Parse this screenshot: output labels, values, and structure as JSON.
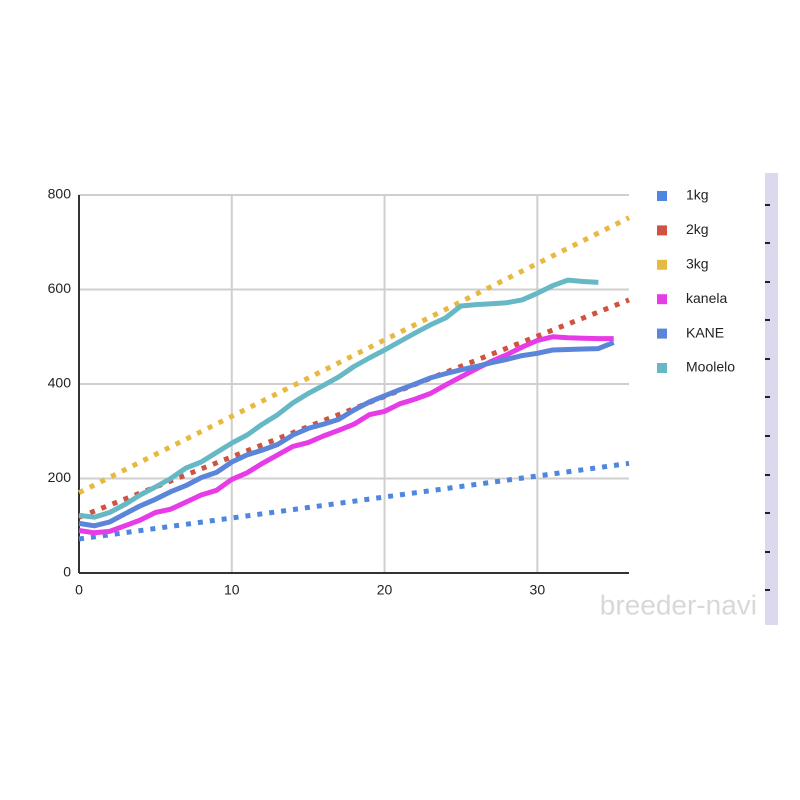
{
  "chart_data": {
    "type": "line",
    "xlim": [
      0,
      36
    ],
    "ylim": [
      0,
      800
    ],
    "xticks": [
      0,
      10,
      20,
      30
    ],
    "yticks": [
      0,
      200,
      400,
      600,
      800
    ],
    "grid": true,
    "legend": "right",
    "watermark": "breeder-navi",
    "series": [
      {
        "name": "1kg",
        "color": "#4f86e0",
        "dotted": true,
        "x": [
          0,
          36
        ],
        "values": [
          72,
          232
        ]
      },
      {
        "name": "2kg",
        "color": "#cf5340",
        "dotted": true,
        "x": [
          0,
          36
        ],
        "values": [
          118,
          578
        ]
      },
      {
        "name": "3kg",
        "color": "#e8b940",
        "dotted": true,
        "x": [
          0,
          36
        ],
        "values": [
          170,
          752
        ]
      },
      {
        "name": "kanela",
        "color": "#e83be8",
        "dotted": false,
        "x": [
          0,
          1,
          2,
          3,
          4,
          5,
          6,
          7,
          8,
          9,
          10,
          11,
          12,
          13,
          14,
          15,
          16,
          17,
          18,
          19,
          20,
          21,
          22,
          23,
          24,
          25,
          26,
          27,
          28,
          29,
          30,
          31,
          32,
          33,
          34,
          35
        ],
        "values": [
          90,
          85,
          88,
          100,
          112,
          128,
          135,
          150,
          165,
          175,
          198,
          212,
          232,
          250,
          268,
          276,
          290,
          302,
          315,
          335,
          342,
          358,
          368,
          380,
          398,
          415,
          432,
          448,
          462,
          478,
          492,
          500,
          498,
          497,
          496,
          496
        ]
      },
      {
        "name": "KANE",
        "color": "#5b85d8",
        "dotted": false,
        "x": [
          0,
          1,
          2,
          3,
          4,
          5,
          6,
          7,
          8,
          9,
          10,
          11,
          12,
          13,
          14,
          15,
          16,
          17,
          18,
          19,
          20,
          21,
          22,
          23,
          24,
          25,
          26,
          27,
          28,
          29,
          30,
          31,
          32,
          33,
          34,
          35
        ],
        "values": [
          105,
          100,
          108,
          125,
          142,
          156,
          172,
          185,
          202,
          213,
          235,
          250,
          260,
          272,
          292,
          306,
          315,
          325,
          345,
          362,
          375,
          388,
          400,
          413,
          422,
          430,
          437,
          445,
          452,
          460,
          465,
          472,
          473,
          474,
          475,
          488
        ]
      },
      {
        "name": "Moolelo",
        "color": "#66b8c4",
        "dotted": false,
        "x": [
          0,
          1,
          2,
          3,
          4,
          5,
          6,
          7,
          8,
          9,
          10,
          11,
          12,
          13,
          14,
          15,
          16,
          17,
          18,
          19,
          20,
          21,
          22,
          23,
          24,
          25,
          26,
          27,
          28,
          29,
          30,
          31,
          32,
          33,
          34
        ],
        "values": [
          122,
          118,
          128,
          145,
          165,
          182,
          200,
          222,
          235,
          255,
          275,
          292,
          315,
          335,
          360,
          380,
          397,
          415,
          437,
          455,
          472,
          490,
          508,
          525,
          540,
          565,
          568,
          570,
          572,
          578,
          592,
          608,
          620,
          617,
          615
        ]
      }
    ]
  }
}
